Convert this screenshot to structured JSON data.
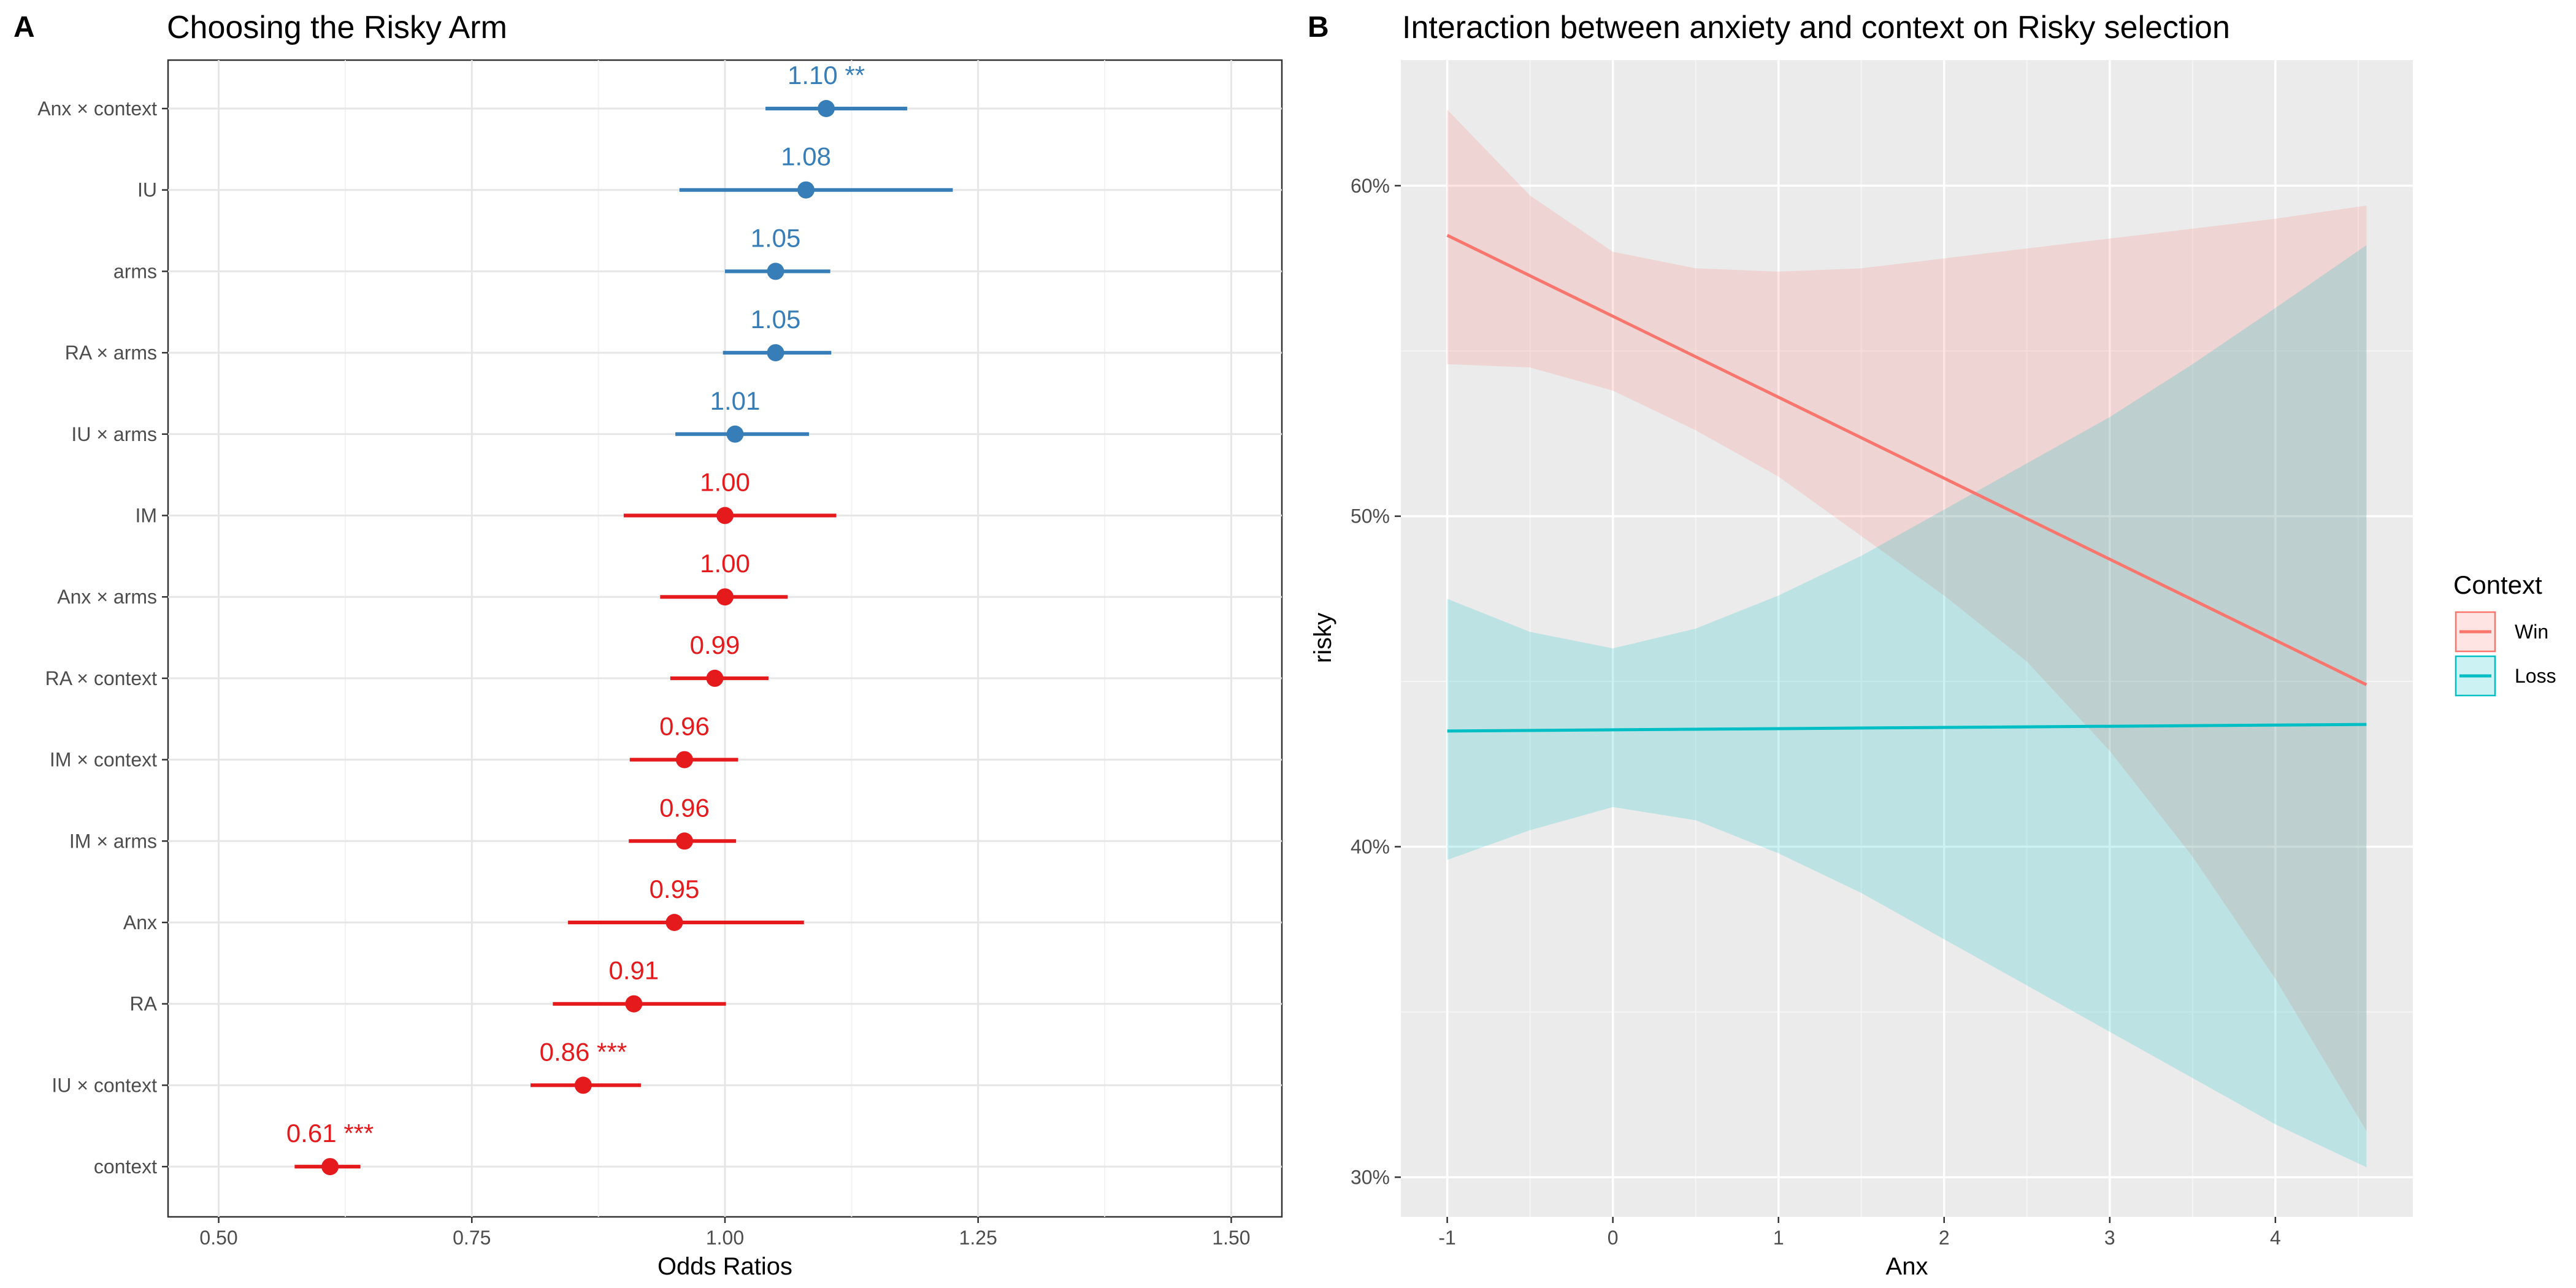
{
  "colors": {
    "positive": "#377EB8",
    "negative": "#E41A1C",
    "win": "#F8766D",
    "loss": "#00BFC4"
  },
  "chart_data": [
    {
      "panel": "A",
      "type": "scatter",
      "title": "Choosing the Risky Arm",
      "xlabel": "Odds Ratios",
      "ylabel": "",
      "xlim": [
        0.45,
        1.55
      ],
      "xticks": [
        "0.50",
        "0.75",
        "1.00",
        "1.25",
        "1.50"
      ],
      "xtick_values": [
        0.5,
        0.75,
        1.0,
        1.25,
        1.5
      ],
      "grid": true,
      "terms": [
        {
          "name": "Anx × context",
          "estimate": 1.1,
          "low": 1.04,
          "high": 1.18,
          "label": "1.10 **",
          "direction": "positive"
        },
        {
          "name": "IU",
          "estimate": 1.08,
          "low": 0.955,
          "high": 1.225,
          "label": "1.08",
          "direction": "positive"
        },
        {
          "name": "arms",
          "estimate": 1.05,
          "low": 1.0,
          "high": 1.104,
          "label": "1.05",
          "direction": "positive"
        },
        {
          "name": "RA × arms",
          "estimate": 1.05,
          "low": 0.998,
          "high": 1.105,
          "label": "1.05",
          "direction": "positive"
        },
        {
          "name": "IU × arms",
          "estimate": 1.01,
          "low": 0.951,
          "high": 1.083,
          "label": "1.01",
          "direction": "positive"
        },
        {
          "name": "IM",
          "estimate": 1.0,
          "low": 0.9,
          "high": 1.11,
          "label": "1.00",
          "direction": "negative"
        },
        {
          "name": "Anx × arms",
          "estimate": 1.0,
          "low": 0.936,
          "high": 1.062,
          "label": "1.00",
          "direction": "negative"
        },
        {
          "name": "RA × context",
          "estimate": 0.99,
          "low": 0.946,
          "high": 1.043,
          "label": "0.99",
          "direction": "negative"
        },
        {
          "name": "IM × context",
          "estimate": 0.96,
          "low": 0.906,
          "high": 1.013,
          "label": "0.96",
          "direction": "negative"
        },
        {
          "name": "IM × arms",
          "estimate": 0.96,
          "low": 0.905,
          "high": 1.011,
          "label": "0.96",
          "direction": "negative"
        },
        {
          "name": "Anx",
          "estimate": 0.95,
          "low": 0.845,
          "high": 1.078,
          "label": "0.95",
          "direction": "negative"
        },
        {
          "name": "RA",
          "estimate": 0.91,
          "low": 0.83,
          "high": 1.001,
          "label": "0.91",
          "direction": "negative"
        },
        {
          "name": "IU × context",
          "estimate": 0.86,
          "low": 0.808,
          "high": 0.917,
          "label": "0.86 ***",
          "direction": "negative"
        },
        {
          "name": "context",
          "estimate": 0.61,
          "low": 0.575,
          "high": 0.64,
          "label": "0.61 ***",
          "direction": "negative"
        }
      ]
    },
    {
      "panel": "B",
      "type": "line",
      "title": "Interaction between anxiety and context on Risky selection",
      "xlabel": "Anx",
      "ylabel": "risky",
      "xlim": [
        -1.28,
        4.83
      ],
      "ylim": [
        0.288,
        0.638
      ],
      "xticks": [
        "-1",
        "0",
        "1",
        "2",
        "3",
        "4"
      ],
      "xtick_values": [
        -1,
        0,
        1,
        2,
        3,
        4
      ],
      "yticks": [
        "30%",
        "40%",
        "50%",
        "60%"
      ],
      "ytick_values": [
        0.3,
        0.4,
        0.5,
        0.6
      ],
      "grid": true,
      "legend": {
        "title": "Context",
        "placement": "right"
      },
      "series": [
        {
          "name": "Win",
          "color_key": "win",
          "x": [
            -1,
            4.55
          ],
          "y": [
            0.585,
            0.449
          ],
          "band_x": [
            -1,
            -0.5,
            0,
            0.5,
            1,
            1.5,
            2,
            2.5,
            3,
            3.5,
            4,
            4.55
          ],
          "band_low": [
            0.546,
            0.545,
            0.538,
            0.526,
            0.512,
            0.494,
            0.476,
            0.456,
            0.429,
            0.397,
            0.36,
            0.314
          ],
          "band_high": [
            0.623,
            0.597,
            0.58,
            0.575,
            0.574,
            0.575,
            0.578,
            0.581,
            0.584,
            0.587,
            0.59,
            0.594
          ]
        },
        {
          "name": "Loss",
          "color_key": "loss",
          "x": [
            -1,
            4.55
          ],
          "y": [
            0.435,
            0.437
          ],
          "band_x": [
            -1,
            -0.5,
            0,
            0.5,
            1,
            1.5,
            2,
            2.5,
            3,
            3.5,
            4,
            4.55
          ],
          "band_low": [
            0.396,
            0.405,
            0.412,
            0.408,
            0.398,
            0.386,
            0.372,
            0.358,
            0.344,
            0.33,
            0.316,
            0.303
          ],
          "band_high": [
            0.475,
            0.465,
            0.46,
            0.466,
            0.476,
            0.488,
            0.502,
            0.516,
            0.53,
            0.546,
            0.563,
            0.582
          ]
        }
      ]
    }
  ]
}
